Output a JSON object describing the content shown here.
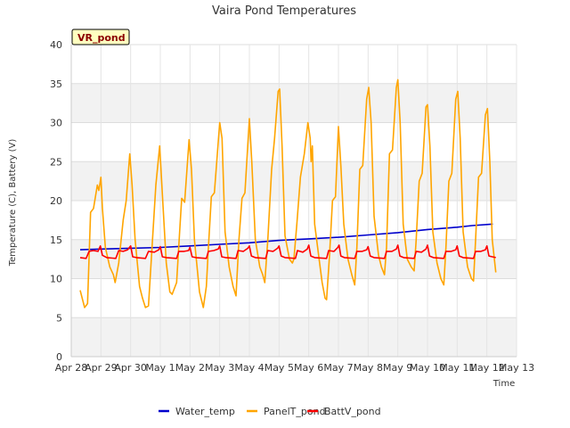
{
  "chart_data": {
    "type": "line",
    "title": "Vaira Pond Temperatures",
    "xlabel": "Time",
    "ylabel": "Temperature (C), Battery (V)",
    "site_label": "VR_pond",
    "ylim": [
      0,
      40
    ],
    "yticks": [
      0,
      5,
      10,
      15,
      20,
      25,
      30,
      35,
      40
    ],
    "xlim": [
      0,
      15
    ],
    "xticks": [
      {
        "value": 0,
        "label": "Apr 28"
      },
      {
        "value": 1,
        "label": "Apr 29"
      },
      {
        "value": 2,
        "label": "Apr 30"
      },
      {
        "value": 3,
        "label": "May 1"
      },
      {
        "value": 4,
        "label": "May 2"
      },
      {
        "value": 5,
        "label": "May 3"
      },
      {
        "value": 6,
        "label": "May 4"
      },
      {
        "value": 7,
        "label": "May 5"
      },
      {
        "value": 8,
        "label": "May 6"
      },
      {
        "value": 9,
        "label": "May 7"
      },
      {
        "value": 10,
        "label": "May 8"
      },
      {
        "value": 11,
        "label": "May 9"
      },
      {
        "value": 12,
        "label": "May 10"
      },
      {
        "value": 13,
        "label": "May 11"
      },
      {
        "value": 14,
        "label": "May 12"
      },
      {
        "value": 15,
        "label": "May 13"
      }
    ],
    "grid": true,
    "legend_position": "bottom",
    "series": [
      {
        "name": "Water_temp",
        "color": "#0000cc",
        "points": [
          [
            0.3,
            13.7
          ],
          [
            1,
            13.8
          ],
          [
            2,
            13.9
          ],
          [
            3,
            14.0
          ],
          [
            4,
            14.2
          ],
          [
            5,
            14.4
          ],
          [
            6,
            14.6
          ],
          [
            7,
            14.9
          ],
          [
            8,
            15.1
          ],
          [
            9,
            15.3
          ],
          [
            10,
            15.6
          ],
          [
            11,
            15.9
          ],
          [
            12,
            16.3
          ],
          [
            13,
            16.6
          ],
          [
            13.5,
            16.8
          ],
          [
            14.2,
            17.0
          ]
        ]
      },
      {
        "name": "PanelT_pond",
        "color": "#ffa500",
        "points": [
          [
            0.3,
            8.5
          ],
          [
            0.45,
            6.3
          ],
          [
            0.55,
            6.8
          ],
          [
            0.65,
            18.5
          ],
          [
            0.75,
            19.0
          ],
          [
            0.88,
            22.0
          ],
          [
            0.93,
            21.3
          ],
          [
            1.0,
            23.0
          ],
          [
            1.05,
            19.0
          ],
          [
            1.15,
            14.0
          ],
          [
            1.3,
            11.5
          ],
          [
            1.42,
            10.5
          ],
          [
            1.48,
            9.5
          ],
          [
            1.6,
            12.0
          ],
          [
            1.75,
            17.5
          ],
          [
            1.85,
            20.0
          ],
          [
            1.97,
            26.0
          ],
          [
            2.05,
            22.0
          ],
          [
            2.15,
            15.0
          ],
          [
            2.3,
            9.0
          ],
          [
            2.4,
            7.5
          ],
          [
            2.5,
            6.3
          ],
          [
            2.6,
            6.5
          ],
          [
            2.72,
            14.0
          ],
          [
            2.85,
            22.0
          ],
          [
            2.98,
            27.0
          ],
          [
            3.08,
            20.0
          ],
          [
            3.2,
            12.0
          ],
          [
            3.32,
            8.3
          ],
          [
            3.4,
            8.0
          ],
          [
            3.55,
            9.5
          ],
          [
            3.65,
            16.0
          ],
          [
            3.72,
            20.3
          ],
          [
            3.82,
            19.8
          ],
          [
            3.97,
            27.8
          ],
          [
            4.05,
            24.0
          ],
          [
            4.15,
            15.0
          ],
          [
            4.32,
            8.3
          ],
          [
            4.45,
            6.3
          ],
          [
            4.55,
            9.0
          ],
          [
            4.62,
            14.0
          ],
          [
            4.72,
            20.5
          ],
          [
            4.82,
            21.0
          ],
          [
            5.0,
            30.0
          ],
          [
            5.08,
            28.0
          ],
          [
            5.18,
            16.0
          ],
          [
            5.32,
            11.5
          ],
          [
            5.45,
            9.0
          ],
          [
            5.55,
            7.8
          ],
          [
            5.65,
            15.0
          ],
          [
            5.75,
            20.3
          ],
          [
            5.85,
            21.0
          ],
          [
            6.0,
            30.5
          ],
          [
            6.08,
            25.0
          ],
          [
            6.2,
            15.0
          ],
          [
            6.35,
            11.5
          ],
          [
            6.45,
            10.5
          ],
          [
            6.52,
            9.5
          ],
          [
            6.62,
            15.0
          ],
          [
            6.75,
            24.0
          ],
          [
            6.85,
            28.0
          ],
          [
            6.97,
            34.0
          ],
          [
            7.02,
            34.3
          ],
          [
            7.1,
            27.0
          ],
          [
            7.2,
            15.5
          ],
          [
            7.35,
            12.5
          ],
          [
            7.45,
            12.0
          ],
          [
            7.5,
            12.5
          ],
          [
            7.6,
            17.0
          ],
          [
            7.72,
            23.0
          ],
          [
            7.85,
            26.0
          ],
          [
            7.97,
            30.0
          ],
          [
            8.05,
            28.0
          ],
          [
            8.08,
            25.0
          ],
          [
            8.12,
            27.0
          ],
          [
            8.2,
            17.0
          ],
          [
            8.35,
            12.5
          ],
          [
            8.45,
            9.5
          ],
          [
            8.55,
            7.5
          ],
          [
            8.6,
            7.3
          ],
          [
            8.7,
            13.0
          ],
          [
            8.8,
            20.0
          ],
          [
            8.9,
            20.5
          ],
          [
            9.0,
            29.5
          ],
          [
            9.08,
            24.5
          ],
          [
            9.18,
            17.0
          ],
          [
            9.32,
            12.5
          ],
          [
            9.45,
            10.5
          ],
          [
            9.55,
            9.2
          ],
          [
            9.62,
            14.0
          ],
          [
            9.72,
            24.0
          ],
          [
            9.82,
            24.5
          ],
          [
            9.95,
            33.0
          ],
          [
            10.02,
            34.5
          ],
          [
            10.1,
            30.0
          ],
          [
            10.2,
            18.0
          ],
          [
            10.35,
            13.0
          ],
          [
            10.45,
            11.5
          ],
          [
            10.55,
            10.5
          ],
          [
            10.62,
            14.0
          ],
          [
            10.72,
            26.0
          ],
          [
            10.82,
            26.5
          ],
          [
            10.95,
            34.5
          ],
          [
            11.0,
            35.5
          ],
          [
            11.08,
            30.0
          ],
          [
            11.18,
            17.0
          ],
          [
            11.32,
            12.5
          ],
          [
            11.45,
            11.5
          ],
          [
            11.55,
            11.0
          ],
          [
            11.62,
            15.0
          ],
          [
            11.72,
            22.5
          ],
          [
            11.82,
            23.5
          ],
          [
            11.95,
            32.0
          ],
          [
            12.0,
            32.3
          ],
          [
            12.08,
            27.0
          ],
          [
            12.18,
            16.0
          ],
          [
            12.32,
            12.0
          ],
          [
            12.45,
            10.0
          ],
          [
            12.55,
            9.2
          ],
          [
            12.62,
            14.0
          ],
          [
            12.72,
            22.5
          ],
          [
            12.82,
            23.5
          ],
          [
            12.95,
            33.0
          ],
          [
            13.02,
            34.0
          ],
          [
            13.1,
            28.0
          ],
          [
            13.2,
            16.0
          ],
          [
            13.35,
            11.5
          ],
          [
            13.48,
            10.0
          ],
          [
            13.55,
            9.7
          ],
          [
            13.62,
            15.0
          ],
          [
            13.72,
            23.0
          ],
          [
            13.82,
            23.5
          ],
          [
            13.95,
            31.0
          ],
          [
            14.02,
            31.8
          ],
          [
            14.1,
            25.0
          ],
          [
            14.18,
            15.0
          ],
          [
            14.3,
            10.8
          ]
        ]
      },
      {
        "name": "BattV_pond",
        "color": "#ff0000",
        "points": [
          [
            0.3,
            12.7
          ],
          [
            0.5,
            12.6
          ],
          [
            0.6,
            13.5
          ],
          [
            0.75,
            13.6
          ],
          [
            0.9,
            13.5
          ],
          [
            0.98,
            14.2
          ],
          [
            1.05,
            13.0
          ],
          [
            1.2,
            12.7
          ],
          [
            1.5,
            12.6
          ],
          [
            1.6,
            13.6
          ],
          [
            1.75,
            13.5
          ],
          [
            1.9,
            13.7
          ],
          [
            2.0,
            14.2
          ],
          [
            2.07,
            12.8
          ],
          [
            2.2,
            12.7
          ],
          [
            2.5,
            12.6
          ],
          [
            2.6,
            13.5
          ],
          [
            2.8,
            13.4
          ],
          [
            2.95,
            13.7
          ],
          [
            3.0,
            14.1
          ],
          [
            3.07,
            12.8
          ],
          [
            3.2,
            12.7
          ],
          [
            3.55,
            12.6
          ],
          [
            3.62,
            13.5
          ],
          [
            3.8,
            13.5
          ],
          [
            3.95,
            13.6
          ],
          [
            4.0,
            14.0
          ],
          [
            4.07,
            12.8
          ],
          [
            4.2,
            12.7
          ],
          [
            4.55,
            12.6
          ],
          [
            4.62,
            13.5
          ],
          [
            4.8,
            13.6
          ],
          [
            4.95,
            13.8
          ],
          [
            5.0,
            14.2
          ],
          [
            5.07,
            12.8
          ],
          [
            5.2,
            12.7
          ],
          [
            5.55,
            12.6
          ],
          [
            5.62,
            13.6
          ],
          [
            5.8,
            13.5
          ],
          [
            5.95,
            13.9
          ],
          [
            6.0,
            14.2
          ],
          [
            6.07,
            12.9
          ],
          [
            6.2,
            12.7
          ],
          [
            6.55,
            12.6
          ],
          [
            6.62,
            13.6
          ],
          [
            6.8,
            13.5
          ],
          [
            6.95,
            13.9
          ],
          [
            7.0,
            14.2
          ],
          [
            7.07,
            12.9
          ],
          [
            7.2,
            12.7
          ],
          [
            7.55,
            12.6
          ],
          [
            7.62,
            13.6
          ],
          [
            7.8,
            13.4
          ],
          [
            7.95,
            13.8
          ],
          [
            8.0,
            14.3
          ],
          [
            8.07,
            12.9
          ],
          [
            8.2,
            12.7
          ],
          [
            8.6,
            12.6
          ],
          [
            8.67,
            13.6
          ],
          [
            8.85,
            13.5
          ],
          [
            8.98,
            14.0
          ],
          [
            9.02,
            14.3
          ],
          [
            9.08,
            12.9
          ],
          [
            9.2,
            12.7
          ],
          [
            9.55,
            12.6
          ],
          [
            9.62,
            13.5
          ],
          [
            9.8,
            13.5
          ],
          [
            9.95,
            13.7
          ],
          [
            10.0,
            14.1
          ],
          [
            10.07,
            12.9
          ],
          [
            10.2,
            12.7
          ],
          [
            10.55,
            12.6
          ],
          [
            10.62,
            13.5
          ],
          [
            10.8,
            13.5
          ],
          [
            10.95,
            13.8
          ],
          [
            11.0,
            14.3
          ],
          [
            11.07,
            12.9
          ],
          [
            11.2,
            12.7
          ],
          [
            11.55,
            12.6
          ],
          [
            11.62,
            13.5
          ],
          [
            11.8,
            13.4
          ],
          [
            11.95,
            13.8
          ],
          [
            12.0,
            14.3
          ],
          [
            12.07,
            12.9
          ],
          [
            12.2,
            12.7
          ],
          [
            12.55,
            12.6
          ],
          [
            12.62,
            13.5
          ],
          [
            12.8,
            13.5
          ],
          [
            12.95,
            13.7
          ],
          [
            13.0,
            14.2
          ],
          [
            13.07,
            12.9
          ],
          [
            13.2,
            12.7
          ],
          [
            13.55,
            12.6
          ],
          [
            13.62,
            13.5
          ],
          [
            13.8,
            13.5
          ],
          [
            13.95,
            13.7
          ],
          [
            14.0,
            14.2
          ],
          [
            14.07,
            12.9
          ],
          [
            14.3,
            12.7
          ]
        ]
      }
    ]
  }
}
